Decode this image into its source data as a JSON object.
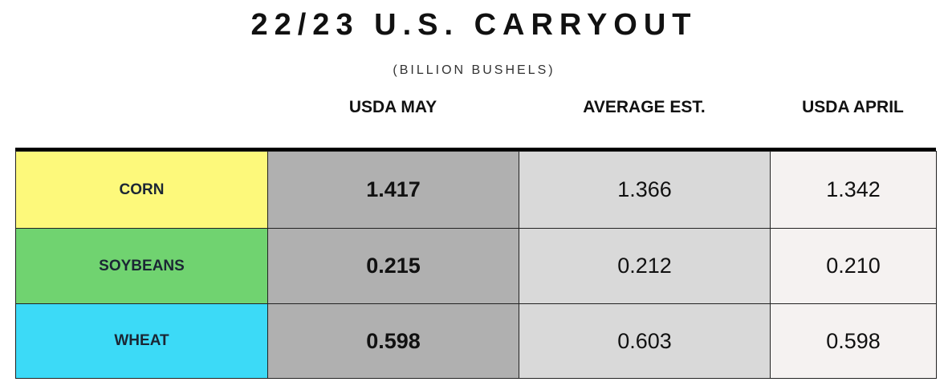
{
  "header": {
    "title": "22/23 U.S. CARRYOUT",
    "subtitle": "(BILLION BUSHELS)"
  },
  "table": {
    "columns": [
      "USDA MAY",
      "AVERAGE EST.",
      "USDA APRIL"
    ],
    "rows": [
      [
        "CORN",
        "1.417",
        "1.366",
        "1.342"
      ],
      [
        "SOYBEANS",
        "0.215",
        "0.212",
        "0.210"
      ],
      [
        "WHEAT",
        "0.598",
        "0.603",
        "0.598"
      ]
    ]
  }
}
